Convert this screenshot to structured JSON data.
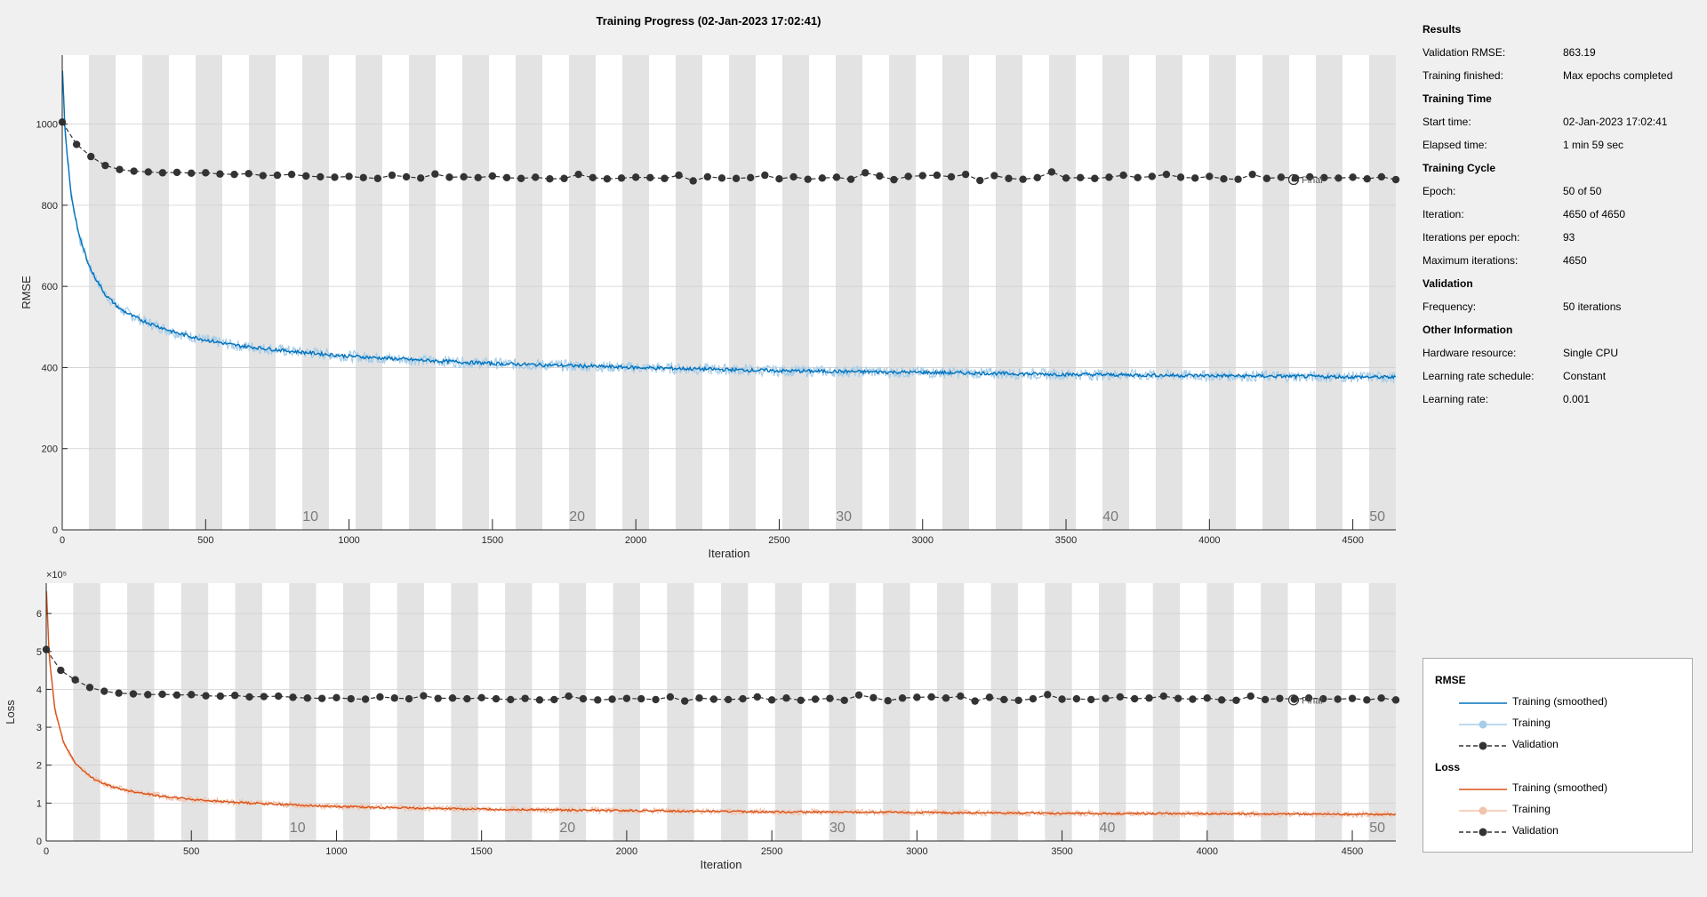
{
  "title": "Training Progress (02-Jan-2023 17:02:41)",
  "info": {
    "sections": [
      {
        "heading": "Results",
        "rows": [
          {
            "label": "Validation RMSE:",
            "value": "863.19"
          },
          {
            "label": "Training finished:",
            "value": "Max epochs completed"
          }
        ]
      },
      {
        "heading": "Training Time",
        "rows": [
          {
            "label": "Start time:",
            "value": "02-Jan-2023 17:02:41"
          },
          {
            "label": "Elapsed time:",
            "value": "1 min 59 sec"
          }
        ]
      },
      {
        "heading": "Training Cycle",
        "rows": [
          {
            "label": "Epoch:",
            "value": "50 of 50"
          },
          {
            "label": "Iteration:",
            "value": "4650 of 4650"
          },
          {
            "label": "Iterations per epoch:",
            "value": "93"
          },
          {
            "label": "Maximum iterations:",
            "value": "4650"
          }
        ]
      },
      {
        "heading": "Validation",
        "rows": [
          {
            "label": "Frequency:",
            "value": "50 iterations"
          }
        ]
      },
      {
        "heading": "Other Information",
        "rows": [
          {
            "label": "Hardware resource:",
            "value": "Single CPU"
          },
          {
            "label": "Learning rate schedule:",
            "value": "Constant"
          },
          {
            "label": "Learning rate:",
            "value": "0.001"
          }
        ]
      }
    ]
  },
  "legend": {
    "groups": [
      {
        "heading": "RMSE",
        "items": [
          "Training (smoothed)",
          "Training",
          "Validation"
        ]
      },
      {
        "heading": "Loss",
        "items": [
          "Training (smoothed)",
          "Training",
          "Validation"
        ]
      }
    ]
  },
  "final_label": "Final",
  "colors": {
    "rmse_smoothed": "#0072bd",
    "rmse_raw": "#a6cde8",
    "loss_smoothed": "#d95319",
    "loss_raw": "#f3c3ab",
    "validation": "#333333",
    "epoch_band": "#e3e3e3"
  },
  "chart_data": [
    {
      "type": "line",
      "name": "rmse",
      "xlabel": "Iteration",
      "ylabel": "RMSE",
      "xlim": [
        0,
        4650
      ],
      "ylim": [
        0,
        1170
      ],
      "xticks": [
        0,
        500,
        1000,
        1500,
        2000,
        2500,
        3000,
        3500,
        4000,
        4500
      ],
      "yticks": [
        0,
        200,
        400,
        600,
        800,
        1000
      ],
      "grid": true,
      "iterations_per_epoch": 93,
      "epoch_labels": [
        10,
        20,
        30,
        40,
        50
      ],
      "series": [
        {
          "name": "Training (smoothed)",
          "x": [
            1,
            10,
            30,
            60,
            100,
            150,
            200,
            250,
            300,
            400,
            500,
            600,
            800,
            1000,
            1250,
            1500,
            2000,
            2500,
            3000,
            3500,
            4000,
            4650
          ],
          "y": [
            1130,
            980,
            830,
            720,
            640,
            580,
            545,
            525,
            510,
            485,
            468,
            455,
            440,
            428,
            418,
            410,
            400,
            392,
            388,
            383,
            380,
            376
          ]
        },
        {
          "name": "Validation",
          "x": [
            0,
            50,
            100,
            150,
            200,
            250,
            300,
            350,
            400,
            450,
            500,
            550,
            600,
            650,
            700,
            750,
            800,
            850,
            900,
            950,
            1000,
            1050,
            1100,
            1150,
            1200,
            1250,
            1300,
            1350,
            1400,
            1450,
            1500,
            1550,
            1600,
            1650,
            1700,
            1750,
            1800,
            1850,
            1900,
            1950,
            2000,
            2050,
            2100,
            2150,
            2200,
            2250,
            2300,
            2350,
            2400,
            2450,
            2500,
            2550,
            2600,
            2650,
            2700,
            2750,
            2800,
            2850,
            2900,
            2950,
            3000,
            3050,
            3100,
            3150,
            3200,
            3250,
            3300,
            3350,
            3400,
            3450,
            3500,
            3550,
            3600,
            3650,
            3700,
            3750,
            3800,
            3850,
            3900,
            3950,
            4000,
            4050,
            4100,
            4150,
            4200,
            4250,
            4300,
            4350,
            4400,
            4450,
            4500,
            4550,
            4600,
            4650
          ],
          "y": [
            1005,
            950,
            920,
            898,
            888,
            884,
            882,
            880,
            881,
            879,
            880,
            877,
            876,
            878,
            873,
            874,
            876,
            872,
            870,
            869,
            871,
            868,
            866,
            874,
            870,
            867,
            877,
            869,
            870,
            868,
            872,
            868,
            866,
            869,
            865,
            866,
            876,
            868,
            865,
            867,
            869,
            868,
            866,
            874,
            860,
            870,
            867,
            866,
            868,
            874,
            865,
            870,
            864,
            867,
            869,
            864,
            880,
            872,
            863,
            871,
            873,
            874,
            870,
            876,
            861,
            873,
            866,
            864,
            868,
            882,
            867,
            868,
            866,
            869,
            874,
            868,
            871,
            876,
            869,
            867,
            871,
            865,
            864,
            876,
            866,
            869,
            867,
            870,
            868,
            867,
            869,
            865,
            870,
            863.19
          ]
        }
      ]
    },
    {
      "type": "line",
      "name": "loss",
      "xlabel": "Iteration",
      "ylabel": "Loss",
      "y_multiplier": "×10⁵",
      "xlim": [
        0,
        4650
      ],
      "ylim": [
        0,
        6.8
      ],
      "xticks": [
        0,
        500,
        1000,
        1500,
        2000,
        2500,
        3000,
        3500,
        4000,
        4500
      ],
      "yticks": [
        0,
        1,
        2,
        3,
        4,
        5,
        6
      ],
      "grid": true,
      "iterations_per_epoch": 93,
      "epoch_labels": [
        10,
        20,
        30,
        40,
        50
      ],
      "series": [
        {
          "name": "Training (smoothed)",
          "x": [
            1,
            10,
            30,
            60,
            100,
            150,
            200,
            250,
            300,
            400,
            500,
            600,
            800,
            1000,
            1250,
            1500,
            2000,
            2500,
            3000,
            3500,
            4000,
            4650
          ],
          "y": [
            6.6,
            4.9,
            3.45,
            2.6,
            2.05,
            1.7,
            1.5,
            1.38,
            1.3,
            1.18,
            1.1,
            1.04,
            0.97,
            0.91,
            0.87,
            0.84,
            0.8,
            0.77,
            0.75,
            0.73,
            0.72,
            0.7
          ]
        },
        {
          "name": "Validation",
          "x": [
            0,
            50,
            100,
            150,
            200,
            250,
            300,
            350,
            400,
            450,
            500,
            550,
            600,
            650,
            700,
            750,
            800,
            850,
            900,
            950,
            1000,
            1050,
            1100,
            1150,
            1200,
            1250,
            1300,
            1350,
            1400,
            1450,
            1500,
            1550,
            1600,
            1650,
            1700,
            1750,
            1800,
            1850,
            1900,
            1950,
            2000,
            2050,
            2100,
            2150,
            2200,
            2250,
            2300,
            2350,
            2400,
            2450,
            2500,
            2550,
            2600,
            2650,
            2700,
            2750,
            2800,
            2850,
            2900,
            2950,
            3000,
            3050,
            3100,
            3150,
            3200,
            3250,
            3300,
            3350,
            3400,
            3450,
            3500,
            3550,
            3600,
            3650,
            3700,
            3750,
            3800,
            3850,
            3900,
            3950,
            4000,
            4050,
            4100,
            4150,
            4200,
            4250,
            4300,
            4350,
            4400,
            4450,
            4500,
            4550,
            4600,
            4650
          ],
          "y": [
            5.05,
            4.5,
            4.25,
            4.05,
            3.95,
            3.9,
            3.88,
            3.86,
            3.87,
            3.85,
            3.86,
            3.83,
            3.82,
            3.84,
            3.8,
            3.81,
            3.82,
            3.79,
            3.77,
            3.76,
            3.78,
            3.75,
            3.74,
            3.8,
            3.77,
            3.75,
            3.83,
            3.76,
            3.77,
            3.75,
            3.78,
            3.75,
            3.73,
            3.76,
            3.72,
            3.73,
            3.82,
            3.75,
            3.72,
            3.74,
            3.76,
            3.75,
            3.73,
            3.8,
            3.69,
            3.77,
            3.74,
            3.73,
            3.75,
            3.8,
            3.72,
            3.77,
            3.71,
            3.74,
            3.76,
            3.71,
            3.85,
            3.78,
            3.7,
            3.77,
            3.79,
            3.8,
            3.77,
            3.82,
            3.69,
            3.79,
            3.73,
            3.71,
            3.75,
            3.86,
            3.74,
            3.75,
            3.73,
            3.76,
            3.8,
            3.75,
            3.77,
            3.82,
            3.76,
            3.74,
            3.77,
            3.72,
            3.71,
            3.82,
            3.73,
            3.76,
            3.74,
            3.77,
            3.75,
            3.74,
            3.76,
            3.72,
            3.77,
            3.72
          ]
        }
      ]
    }
  ]
}
